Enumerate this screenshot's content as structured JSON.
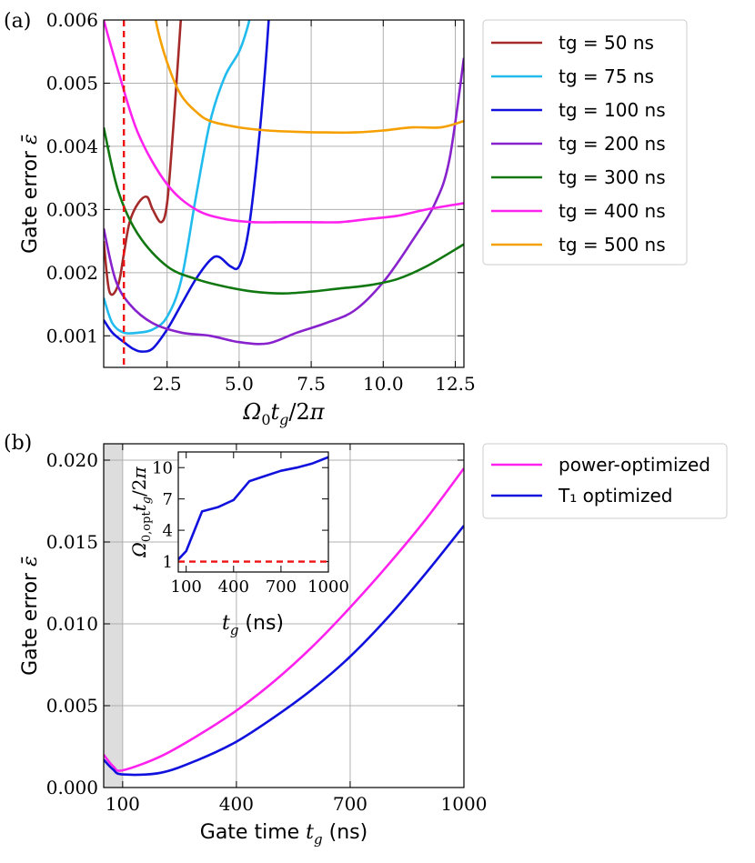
{
  "chart_data": [
    {
      "panel_label": "(a)",
      "type": "line",
      "xlabel": "Ω₀t_g/2π",
      "ylabel": "Gate error ε̄",
      "xlim": [
        0.3,
        12.8
      ],
      "ylim": [
        0.0005,
        0.006
      ],
      "xticks": [
        2.5,
        5.0,
        7.5,
        10.0,
        12.5
      ],
      "xtick_labels": [
        "2.5",
        "5.0",
        "7.5",
        "10.0",
        "12.5"
      ],
      "yticks": [
        0.001,
        0.002,
        0.003,
        0.004,
        0.005,
        0.006
      ],
      "ytick_labels": [
        "0.001",
        "0.002",
        "0.003",
        "0.004",
        "0.005",
        "0.006"
      ],
      "grid": true,
      "legend_position": "outside-right",
      "vline": {
        "x": 1.0,
        "color": "#ee1111",
        "style": "dashed"
      },
      "series": [
        {
          "name": "tg = 50 ns",
          "color": "#a52a2a",
          "x": [
            0.3,
            0.5,
            0.8,
            1.0,
            1.2,
            1.5,
            1.8,
            2.0,
            2.3,
            2.5,
            2.7,
            2.9,
            3.05
          ],
          "y": [
            0.0025,
            0.0017,
            0.0018,
            0.0023,
            0.0028,
            0.0031,
            0.0032,
            0.003,
            0.0028,
            0.0031,
            0.0042,
            0.0055,
            0.0065
          ]
        },
        {
          "name": "tg = 75 ns",
          "color": "#22bbee",
          "x": [
            0.3,
            0.6,
            1.0,
            1.5,
            2.0,
            2.5,
            3.0,
            3.5,
            4.0,
            4.5,
            5.0,
            5.3,
            5.5
          ],
          "y": [
            0.0016,
            0.0012,
            0.00105,
            0.00105,
            0.0011,
            0.0013,
            0.0019,
            0.0032,
            0.0044,
            0.0051,
            0.0055,
            0.0059,
            0.0063
          ]
        },
        {
          "name": "tg = 100 ns",
          "color": "#1111dd",
          "x": [
            0.3,
            0.6,
            1.0,
            1.3,
            1.6,
            2.0,
            2.5,
            3.0,
            3.5,
            4.0,
            4.3,
            4.7,
            5.0,
            5.3,
            5.6,
            5.9,
            6.1
          ],
          "y": [
            0.00125,
            0.00105,
            0.0009,
            0.0008,
            0.00075,
            0.0008,
            0.0011,
            0.0015,
            0.0019,
            0.0022,
            0.00225,
            0.0021,
            0.0021,
            0.0026,
            0.0037,
            0.0052,
            0.0065
          ]
        },
        {
          "name": "tg = 200 ns",
          "color": "#8822cc",
          "x": [
            0.3,
            0.7,
            1.2,
            2.0,
            3.0,
            4.0,
            5.0,
            6.0,
            7.0,
            8.0,
            9.0,
            10.0,
            11.0,
            11.8,
            12.3,
            12.8
          ],
          "y": [
            0.0027,
            0.0019,
            0.0015,
            0.0012,
            0.00105,
            0.001,
            0.0009,
            0.00088,
            0.00105,
            0.0012,
            0.0014,
            0.00185,
            0.0025,
            0.0031,
            0.0038,
            0.0054
          ]
        },
        {
          "name": "tg = 300 ns",
          "color": "#117711",
          "x": [
            0.3,
            0.8,
            1.5,
            2.5,
            3.5,
            4.5,
            5.5,
            6.5,
            7.5,
            8.5,
            9.5,
            10.5,
            11.5,
            12.8
          ],
          "y": [
            0.0043,
            0.0033,
            0.0026,
            0.0021,
            0.0019,
            0.00178,
            0.0017,
            0.00167,
            0.0017,
            0.00175,
            0.0018,
            0.0019,
            0.0021,
            0.00245
          ]
        },
        {
          "name": "tg = 400 ns",
          "color": "#ff22ee",
          "x": [
            0.3,
            0.8,
            1.5,
            2.5,
            3.5,
            4.5,
            5.5,
            6.5,
            7.5,
            8.5,
            9.5,
            10.5,
            11.5,
            12.8
          ],
          "y": [
            0.006,
            0.0052,
            0.0042,
            0.0034,
            0.003,
            0.00285,
            0.0028,
            0.0028,
            0.0028,
            0.0028,
            0.00285,
            0.0029,
            0.003,
            0.0031
          ]
        },
        {
          "name": "tg = 500 ns",
          "color": "#f5a000",
          "x": [
            1.9,
            2.2,
            2.6,
            3.0,
            3.5,
            4.0,
            5.0,
            6.0,
            7.0,
            8.0,
            9.0,
            10.0,
            11.0,
            12.0,
            12.8
          ],
          "y": [
            0.0065,
            0.0058,
            0.0052,
            0.0048,
            0.00455,
            0.0044,
            0.0043,
            0.00425,
            0.00423,
            0.00422,
            0.00422,
            0.00425,
            0.0043,
            0.0043,
            0.0044
          ]
        }
      ]
    },
    {
      "panel_label": "(b)",
      "type": "line",
      "xlabel": "Gate time t_g (ns)",
      "ylabel": "Gate error ε̄",
      "xlim": [
        50,
        1000
      ],
      "ylim": [
        0.0,
        0.021
      ],
      "xticks": [
        100,
        400,
        700,
        1000
      ],
      "xtick_labels": [
        "100",
        "400",
        "700",
        "1000"
      ],
      "yticks": [
        0.0,
        0.005,
        0.01,
        0.015,
        0.02
      ],
      "ytick_labels": [
        "0.000",
        "0.005",
        "0.010",
        "0.015",
        "0.020"
      ],
      "grid": true,
      "shaded_region": {
        "x": [
          50,
          100
        ],
        "color": "#dddddd"
      },
      "legend_position": "outside-right",
      "series": [
        {
          "name": "power-optimized",
          "color": "#ff22ee",
          "x": [
            50,
            75,
            100,
            200,
            300,
            400,
            500,
            600,
            700,
            800,
            900,
            1000
          ],
          "y": [
            0.002,
            0.0013,
            0.00105,
            0.0019,
            0.0032,
            0.0047,
            0.0065,
            0.0086,
            0.011,
            0.0136,
            0.0164,
            0.0195
          ]
        },
        {
          "name": "T₁ optimized",
          "color": "#1111dd",
          "x": [
            50,
            75,
            100,
            200,
            300,
            400,
            500,
            600,
            700,
            800,
            900,
            1000
          ],
          "y": [
            0.0017,
            0.0011,
            0.0008,
            0.0009,
            0.0017,
            0.0028,
            0.0043,
            0.006,
            0.008,
            0.0104,
            0.0131,
            0.016
          ]
        }
      ],
      "inset": {
        "type": "line",
        "xlabel": "t_g (ns)",
        "ylabel": "Ω₀,opt t_g/2π",
        "xlim": [
          50,
          1000
        ],
        "ylim": [
          0,
          11.5
        ],
        "xticks": [
          100,
          400,
          700,
          1000
        ],
        "xtick_labels": [
          "100",
          "400",
          "700",
          "1000"
        ],
        "yticks": [
          1,
          4,
          7,
          10
        ],
        "ytick_labels": [
          "1",
          "4",
          "7",
          "10"
        ],
        "hline": {
          "y": 1.0,
          "color": "#ee1111",
          "style": "dashed"
        },
        "series": [
          {
            "name": "T1 optimized",
            "color": "#1111dd",
            "x": [
              50,
              100,
              200,
              300,
              400,
              500,
              600,
              700,
              800,
              900,
              1000
            ],
            "y": [
              1.2,
              2.0,
              5.8,
              6.2,
              6.9,
              8.7,
              9.2,
              9.7,
              10.0,
              10.4,
              11.0
            ]
          }
        ]
      }
    }
  ]
}
